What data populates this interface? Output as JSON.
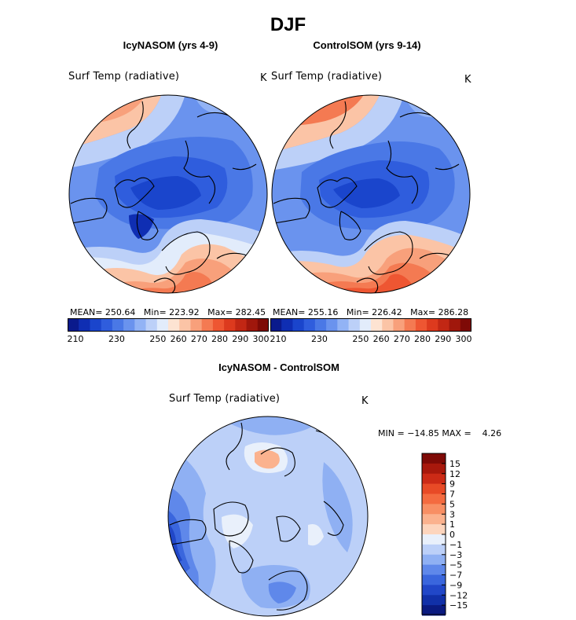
{
  "page_title": "DJF",
  "chart_data": [
    {
      "type": "contour-map",
      "projection": "north polar stereographic",
      "title": "IcyNASOM (yrs 4-9)",
      "variable": "Surf Temp (radiative)",
      "units": "K",
      "stats": {
        "mean_label": "MEAN=",
        "mean": "250.64",
        "min_label": "Min=",
        "min": "223.92",
        "max_label": "Max=",
        "max": "282.45"
      },
      "colorbar": {
        "orientation": "horizontal",
        "levels": [
          210,
          215,
          220,
          225,
          230,
          235,
          240,
          245,
          250,
          255,
          260,
          265,
          270,
          275,
          280,
          285,
          290,
          295,
          300
        ],
        "tick_labels": [
          "210",
          "230",
          "250",
          "260",
          "270",
          "280",
          "290",
          "300"
        ],
        "colors": [
          "#0a1a8c",
          "#0f2eb3",
          "#1a45cc",
          "#2f5ddd",
          "#4a78e6",
          "#6a93ee",
          "#92b3f5",
          "#bcd0f8",
          "#e2ecfb",
          "#fde3d2",
          "#fbc4a6",
          "#f8a07b",
          "#f47a52",
          "#ee5632",
          "#dd3a1e",
          "#c22714",
          "#a0170c",
          "#7e0a06"
        ]
      }
    },
    {
      "type": "contour-map",
      "projection": "north polar stereographic",
      "title": "ControlSOM (yrs 9-14)",
      "variable": "Surf Temp (radiative)",
      "units": "K",
      "stats": {
        "mean_label": "MEAN=",
        "mean": "255.16",
        "min_label": "Min=",
        "min": "226.42",
        "max_label": "Max=",
        "max": "286.28"
      },
      "colorbar": {
        "orientation": "horizontal",
        "levels": [
          210,
          215,
          220,
          225,
          230,
          235,
          240,
          245,
          250,
          255,
          260,
          265,
          270,
          275,
          280,
          285,
          290,
          295,
          300
        ],
        "tick_labels": [
          "210",
          "230",
          "250",
          "260",
          "270",
          "280",
          "290",
          "300"
        ],
        "colors": [
          "#0a1a8c",
          "#0f2eb3",
          "#1a45cc",
          "#2f5ddd",
          "#4a78e6",
          "#6a93ee",
          "#92b3f5",
          "#bcd0f8",
          "#e2ecfb",
          "#fde3d2",
          "#fbc4a6",
          "#f8a07b",
          "#f47a52",
          "#ee5632",
          "#dd3a1e",
          "#c22714",
          "#a0170c",
          "#7e0a06"
        ]
      }
    },
    {
      "type": "contour-map",
      "projection": "north polar stereographic",
      "title": "IcyNASOM - ControlSOM",
      "variable": "Surf Temp (radiative)",
      "units": "K",
      "stats": {
        "min_label": "MIN =",
        "min": "−14.85",
        "max_label": "MAX =",
        "max": "4.26"
      },
      "colorbar": {
        "orientation": "vertical",
        "tick_labels": [
          "15",
          "12",
          "9",
          "7",
          "5",
          "3",
          "1",
          "0",
          "−1",
          "−3",
          "−5",
          "−7",
          "−9",
          "−12",
          "−15"
        ],
        "colors": [
          "#7e0a06",
          "#a8180c",
          "#cc2a16",
          "#e84a26",
          "#f46b40",
          "#f88f64",
          "#fbb28e",
          "#fdd5bd",
          "#e9f0fb",
          "#bcd0f8",
          "#8fb0f3",
          "#5f88ea",
          "#3a66dd",
          "#2147c8",
          "#1130a8",
          "#0a1a80"
        ]
      }
    }
  ]
}
